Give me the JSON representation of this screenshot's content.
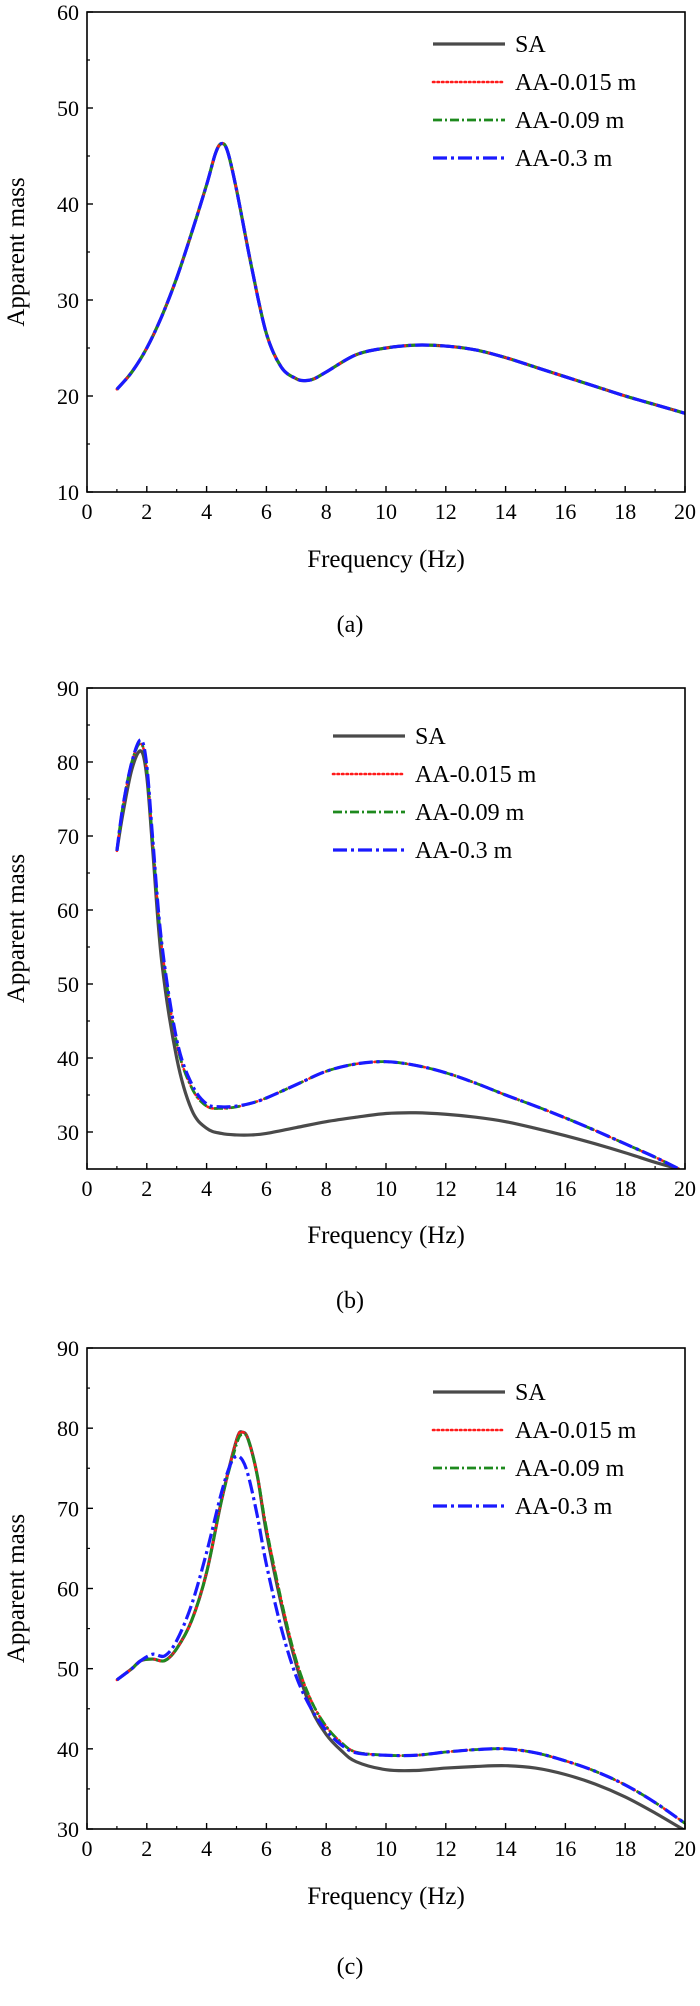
{
  "chart_data": [
    {
      "type": "line",
      "caption": "(a)",
      "xlabel": "Frequency (Hz)",
      "ylabel": "Apparent mass",
      "xlim": [
        0,
        20
      ],
      "ylim": [
        10,
        60
      ],
      "xticks": [
        0,
        2,
        4,
        6,
        8,
        10,
        12,
        14,
        16,
        18,
        20
      ],
      "yticks": [
        10,
        20,
        30,
        40,
        50,
        60
      ],
      "grid": false,
      "legend_position": "top-right",
      "series": [
        {
          "name": "SA",
          "color": "#4a4a4a",
          "style": "solid",
          "x": [
            1,
            1.5,
            2,
            2.5,
            3,
            3.5,
            4,
            4.3,
            4.5,
            4.7,
            5,
            5.5,
            6,
            6.5,
            7,
            7.3,
            7.6,
            8,
            9,
            10,
            11,
            12,
            13,
            14,
            15,
            16,
            17,
            18,
            19,
            20
          ],
          "y": [
            20.7,
            22.5,
            25.0,
            28.3,
            32.3,
            37.0,
            42.0,
            45.3,
            46.3,
            45.5,
            41.5,
            33.5,
            26.5,
            23.0,
            21.8,
            21.6,
            21.8,
            22.5,
            24.3,
            25.0,
            25.3,
            25.2,
            24.8,
            24.0,
            23.0,
            22.0,
            21.0,
            20.0,
            19.1,
            18.2
          ]
        },
        {
          "name": "AA-0.015 m",
          "color": "#ff1a1a",
          "style": "dotted",
          "x": [
            1,
            1.5,
            2,
            2.5,
            3,
            3.5,
            4,
            4.3,
            4.5,
            4.7,
            5,
            5.5,
            6,
            6.5,
            7,
            7.3,
            7.6,
            8,
            9,
            10,
            11,
            12,
            13,
            14,
            15,
            16,
            17,
            18,
            19,
            20
          ],
          "y": [
            20.7,
            22.5,
            25.0,
            28.3,
            32.3,
            37.0,
            42.0,
            45.3,
            46.3,
            45.5,
            41.5,
            33.5,
            26.5,
            23.0,
            21.8,
            21.6,
            21.8,
            22.5,
            24.3,
            25.0,
            25.3,
            25.2,
            24.8,
            24.0,
            23.0,
            22.0,
            21.0,
            20.0,
            19.1,
            18.2
          ]
        },
        {
          "name": "AA-0.09 m",
          "color": "#1e8a1e",
          "style": "dashdot",
          "x": [
            1,
            1.5,
            2,
            2.5,
            3,
            3.5,
            4,
            4.3,
            4.5,
            4.7,
            5,
            5.5,
            6,
            6.5,
            7,
            7.3,
            7.6,
            8,
            9,
            10,
            11,
            12,
            13,
            14,
            15,
            16,
            17,
            18,
            19,
            20
          ],
          "y": [
            20.7,
            22.5,
            25.0,
            28.3,
            32.3,
            37.0,
            42.0,
            45.3,
            46.3,
            45.5,
            41.5,
            33.5,
            26.5,
            23.0,
            21.8,
            21.6,
            21.8,
            22.5,
            24.3,
            25.0,
            25.3,
            25.2,
            24.8,
            24.0,
            23.0,
            22.0,
            21.0,
            20.0,
            19.1,
            18.2
          ]
        },
        {
          "name": "AA-0.3 m",
          "color": "#1a1aff",
          "style": "longdashdot",
          "x": [
            1,
            1.5,
            2,
            2.5,
            3,
            3.5,
            4,
            4.3,
            4.5,
            4.7,
            5,
            5.5,
            6,
            6.5,
            7,
            7.3,
            7.6,
            8,
            9,
            10,
            11,
            12,
            13,
            14,
            15,
            16,
            17,
            18,
            19,
            20
          ],
          "y": [
            20.7,
            22.5,
            25.0,
            28.3,
            32.3,
            37.0,
            42.0,
            45.3,
            46.3,
            45.5,
            41.5,
            33.5,
            26.5,
            23.0,
            21.8,
            21.6,
            21.8,
            22.5,
            24.3,
            25.0,
            25.3,
            25.2,
            24.8,
            24.0,
            23.0,
            22.0,
            21.0,
            20.0,
            19.1,
            18.2
          ]
        }
      ]
    },
    {
      "type": "line",
      "caption": "(b)",
      "xlabel": "Frequency (Hz)",
      "ylabel": "Apparent mass",
      "xlim": [
        0,
        20
      ],
      "ylim": [
        25,
        90
      ],
      "xticks": [
        0,
        2,
        4,
        6,
        8,
        10,
        12,
        14,
        16,
        18,
        20
      ],
      "yticks": [
        30,
        40,
        50,
        60,
        70,
        80,
        90
      ],
      "grid": false,
      "legend_position": "top-right",
      "series": [
        {
          "name": "SA",
          "color": "#4a4a4a",
          "style": "solid",
          "x": [
            1,
            1.2,
            1.5,
            1.8,
            2,
            2.2,
            2.5,
            3,
            3.5,
            4,
            4.5,
            5,
            5.5,
            6,
            7,
            8,
            9,
            10,
            11,
            12,
            13,
            14,
            15,
            16,
            17,
            18,
            19,
            19.8
          ],
          "y": [
            68,
            73,
            79,
            81.5,
            78,
            68,
            53,
            40,
            33,
            30.5,
            29.8,
            29.6,
            29.6,
            29.8,
            30.6,
            31.4,
            32.0,
            32.5,
            32.6,
            32.4,
            32.0,
            31.4,
            30.5,
            29.5,
            28.4,
            27.2,
            25.9,
            25
          ]
        },
        {
          "name": "AA-0.015 m",
          "color": "#ff1a1a",
          "style": "dotted",
          "x": [
            1,
            1.2,
            1.5,
            1.8,
            2,
            2.2,
            2.5,
            3,
            3.5,
            4,
            4.5,
            5,
            5.5,
            6,
            7,
            8,
            9,
            10,
            11,
            12,
            13,
            14,
            15,
            16,
            17,
            18,
            19,
            19.8
          ],
          "y": [
            68,
            74,
            80,
            82.5,
            79,
            69,
            55,
            42,
            36,
            33.5,
            33.2,
            33.4,
            33.9,
            34.6,
            36.4,
            38.2,
            39.2,
            39.5,
            39.0,
            38.0,
            36.6,
            35.0,
            33.5,
            31.9,
            30.2,
            28.4,
            26.6,
            25
          ]
        },
        {
          "name": "AA-0.09 m",
          "color": "#1e8a1e",
          "style": "dashdot",
          "x": [
            1,
            1.2,
            1.5,
            1.8,
            2,
            2.2,
            2.5,
            3,
            3.5,
            4,
            4.5,
            5,
            5.5,
            6,
            7,
            8,
            9,
            10,
            11,
            12,
            13,
            14,
            15,
            16,
            17,
            18,
            19,
            19.8
          ],
          "y": [
            68,
            74,
            80,
            82.5,
            79,
            69,
            55,
            42,
            36,
            33.5,
            33.2,
            33.4,
            33.9,
            34.6,
            36.4,
            38.2,
            39.2,
            39.5,
            39.0,
            38.0,
            36.6,
            35.0,
            33.5,
            31.9,
            30.2,
            28.4,
            26.6,
            25
          ]
        },
        {
          "name": "AA-0.3 m",
          "color": "#1a1aff",
          "style": "longdashdot",
          "x": [
            1,
            1.2,
            1.5,
            1.8,
            2,
            2.2,
            2.5,
            3,
            3.5,
            4,
            4.5,
            5,
            5.5,
            6,
            7,
            8,
            9,
            10,
            11,
            12,
            13,
            14,
            15,
            16,
            17,
            18,
            19,
            19.8
          ],
          "y": [
            68,
            74,
            80,
            83,
            79.5,
            69.5,
            55.5,
            42.5,
            36.5,
            33.8,
            33.4,
            33.5,
            33.9,
            34.6,
            36.4,
            38.2,
            39.2,
            39.5,
            39.0,
            38.0,
            36.6,
            35.0,
            33.5,
            31.9,
            30.2,
            28.4,
            26.6,
            25
          ]
        }
      ]
    },
    {
      "type": "line",
      "caption": "(c)",
      "xlabel": "Frequency (Hz)",
      "ylabel": "Apparent mass",
      "xlim": [
        0,
        20
      ],
      "ylim": [
        30,
        90
      ],
      "xticks": [
        0,
        2,
        4,
        6,
        8,
        10,
        12,
        14,
        16,
        18,
        20
      ],
      "yticks": [
        30,
        40,
        50,
        60,
        70,
        80,
        90
      ],
      "grid": false,
      "legend_position": "top-right",
      "series": [
        {
          "name": "SA",
          "color": "#4a4a4a",
          "style": "solid",
          "x": [
            1,
            1.5,
            1.8,
            2.2,
            2.6,
            3,
            3.5,
            4,
            4.5,
            5,
            5.2,
            5.4,
            5.7,
            6,
            6.5,
            7,
            7.5,
            8,
            8.5,
            9,
            10,
            11,
            12,
            13,
            14,
            15,
            16,
            17,
            18,
            19,
            20
          ],
          "y": [
            48.6,
            50.0,
            51.0,
            51.2,
            51.0,
            52.5,
            56.0,
            62.0,
            71.0,
            78.5,
            79.5,
            78.5,
            74.0,
            67.0,
            58.0,
            50.5,
            45.0,
            41.8,
            39.8,
            38.4,
            37.4,
            37.3,
            37.6,
            37.8,
            37.9,
            37.6,
            36.8,
            35.6,
            34.0,
            32.0,
            29.8
          ]
        },
        {
          "name": "AA-0.015 m",
          "color": "#ff1a1a",
          "style": "dotted",
          "x": [
            1,
            1.5,
            1.8,
            2.2,
            2.6,
            3,
            3.5,
            4,
            4.5,
            5,
            5.2,
            5.4,
            5.7,
            6,
            6.5,
            7,
            7.5,
            8,
            8.5,
            9,
            10,
            11,
            12,
            13,
            14,
            15,
            16,
            17,
            18,
            19,
            20
          ],
          "y": [
            48.6,
            50.0,
            51.0,
            51.2,
            51.0,
            52.5,
            56.0,
            62.0,
            71.0,
            78.5,
            79.5,
            78.5,
            74.0,
            67.5,
            58.5,
            51.0,
            46.0,
            42.8,
            40.8,
            39.6,
            39.2,
            39.2,
            39.6,
            39.9,
            40.0,
            39.5,
            38.5,
            37.2,
            35.5,
            33.3,
            30.7
          ]
        },
        {
          "name": "AA-0.09 m",
          "color": "#1e8a1e",
          "style": "dashdot",
          "x": [
            1,
            1.5,
            1.8,
            2.2,
            2.6,
            3,
            3.5,
            4,
            4.5,
            5,
            5.2,
            5.4,
            5.7,
            6,
            6.5,
            7,
            7.5,
            8,
            8.5,
            9,
            10,
            11,
            12,
            13,
            14,
            15,
            16,
            17,
            18,
            19,
            20
          ],
          "y": [
            48.6,
            50.0,
            51.0,
            51.2,
            51.0,
            52.5,
            56.0,
            62.0,
            71.0,
            78.0,
            79.2,
            78.5,
            74.0,
            67.5,
            58.5,
            51.0,
            46.0,
            42.8,
            40.8,
            39.6,
            39.2,
            39.2,
            39.6,
            39.9,
            40.0,
            39.5,
            38.5,
            37.2,
            35.5,
            33.3,
            30.7
          ]
        },
        {
          "name": "AA-0.3 m",
          "color": "#1a1aff",
          "style": "longdashdot",
          "x": [
            1,
            1.5,
            1.8,
            2.2,
            2.6,
            3,
            3.5,
            4,
            4.5,
            4.8,
            5,
            5.2,
            5.4,
            5.7,
            6,
            6.5,
            7,
            7.5,
            8,
            8.5,
            9,
            10,
            11,
            12,
            13,
            14,
            15,
            16,
            17,
            18,
            19,
            20
          ],
          "y": [
            48.6,
            50.0,
            51.0,
            51.8,
            51.6,
            53.5,
            58.0,
            64.5,
            72.0,
            75.5,
            76.5,
            76.0,
            74.0,
            69.0,
            63.0,
            55.0,
            49.0,
            45.0,
            42.3,
            40.5,
            39.5,
            39.2,
            39.2,
            39.6,
            39.9,
            40.0,
            39.5,
            38.5,
            37.2,
            35.5,
            33.3,
            30.7
          ]
        }
      ]
    }
  ]
}
